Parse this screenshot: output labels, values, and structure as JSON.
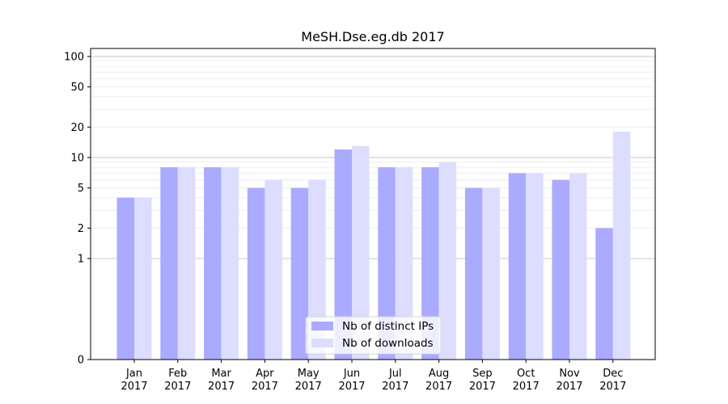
{
  "chart_data": {
    "type": "bar",
    "title": "MeSH.Dse.eg.db 2017",
    "xlabel": "",
    "ylabel": "",
    "y_scale": "symlog",
    "ylim": [
      0,
      120
    ],
    "y_ticks": [
      0,
      1,
      2,
      5,
      10,
      20,
      50,
      100
    ],
    "y_tick_labels": [
      "0",
      "1",
      "2",
      "5",
      "10",
      "20",
      "50",
      "100"
    ],
    "grid": true,
    "legend_position": "lower-center",
    "categories": [
      {
        "month": "Jan",
        "year": "2017"
      },
      {
        "month": "Feb",
        "year": "2017"
      },
      {
        "month": "Mar",
        "year": "2017"
      },
      {
        "month": "Apr",
        "year": "2017"
      },
      {
        "month": "May",
        "year": "2017"
      },
      {
        "month": "Jun",
        "year": "2017"
      },
      {
        "month": "Jul",
        "year": "2017"
      },
      {
        "month": "Aug",
        "year": "2017"
      },
      {
        "month": "Sep",
        "year": "2017"
      },
      {
        "month": "Oct",
        "year": "2017"
      },
      {
        "month": "Nov",
        "year": "2017"
      },
      {
        "month": "Dec",
        "year": "2017"
      }
    ],
    "series": [
      {
        "name": "Nb of distinct IPs",
        "color": "#aaaaff",
        "values": [
          4,
          8,
          8,
          5,
          5,
          12,
          8,
          8,
          5,
          7,
          6,
          2
        ]
      },
      {
        "name": "Nb of downloads",
        "color": "#ddddff",
        "values": [
          4,
          8,
          8,
          6,
          6,
          13,
          8,
          9,
          5,
          7,
          7,
          18
        ]
      }
    ]
  }
}
